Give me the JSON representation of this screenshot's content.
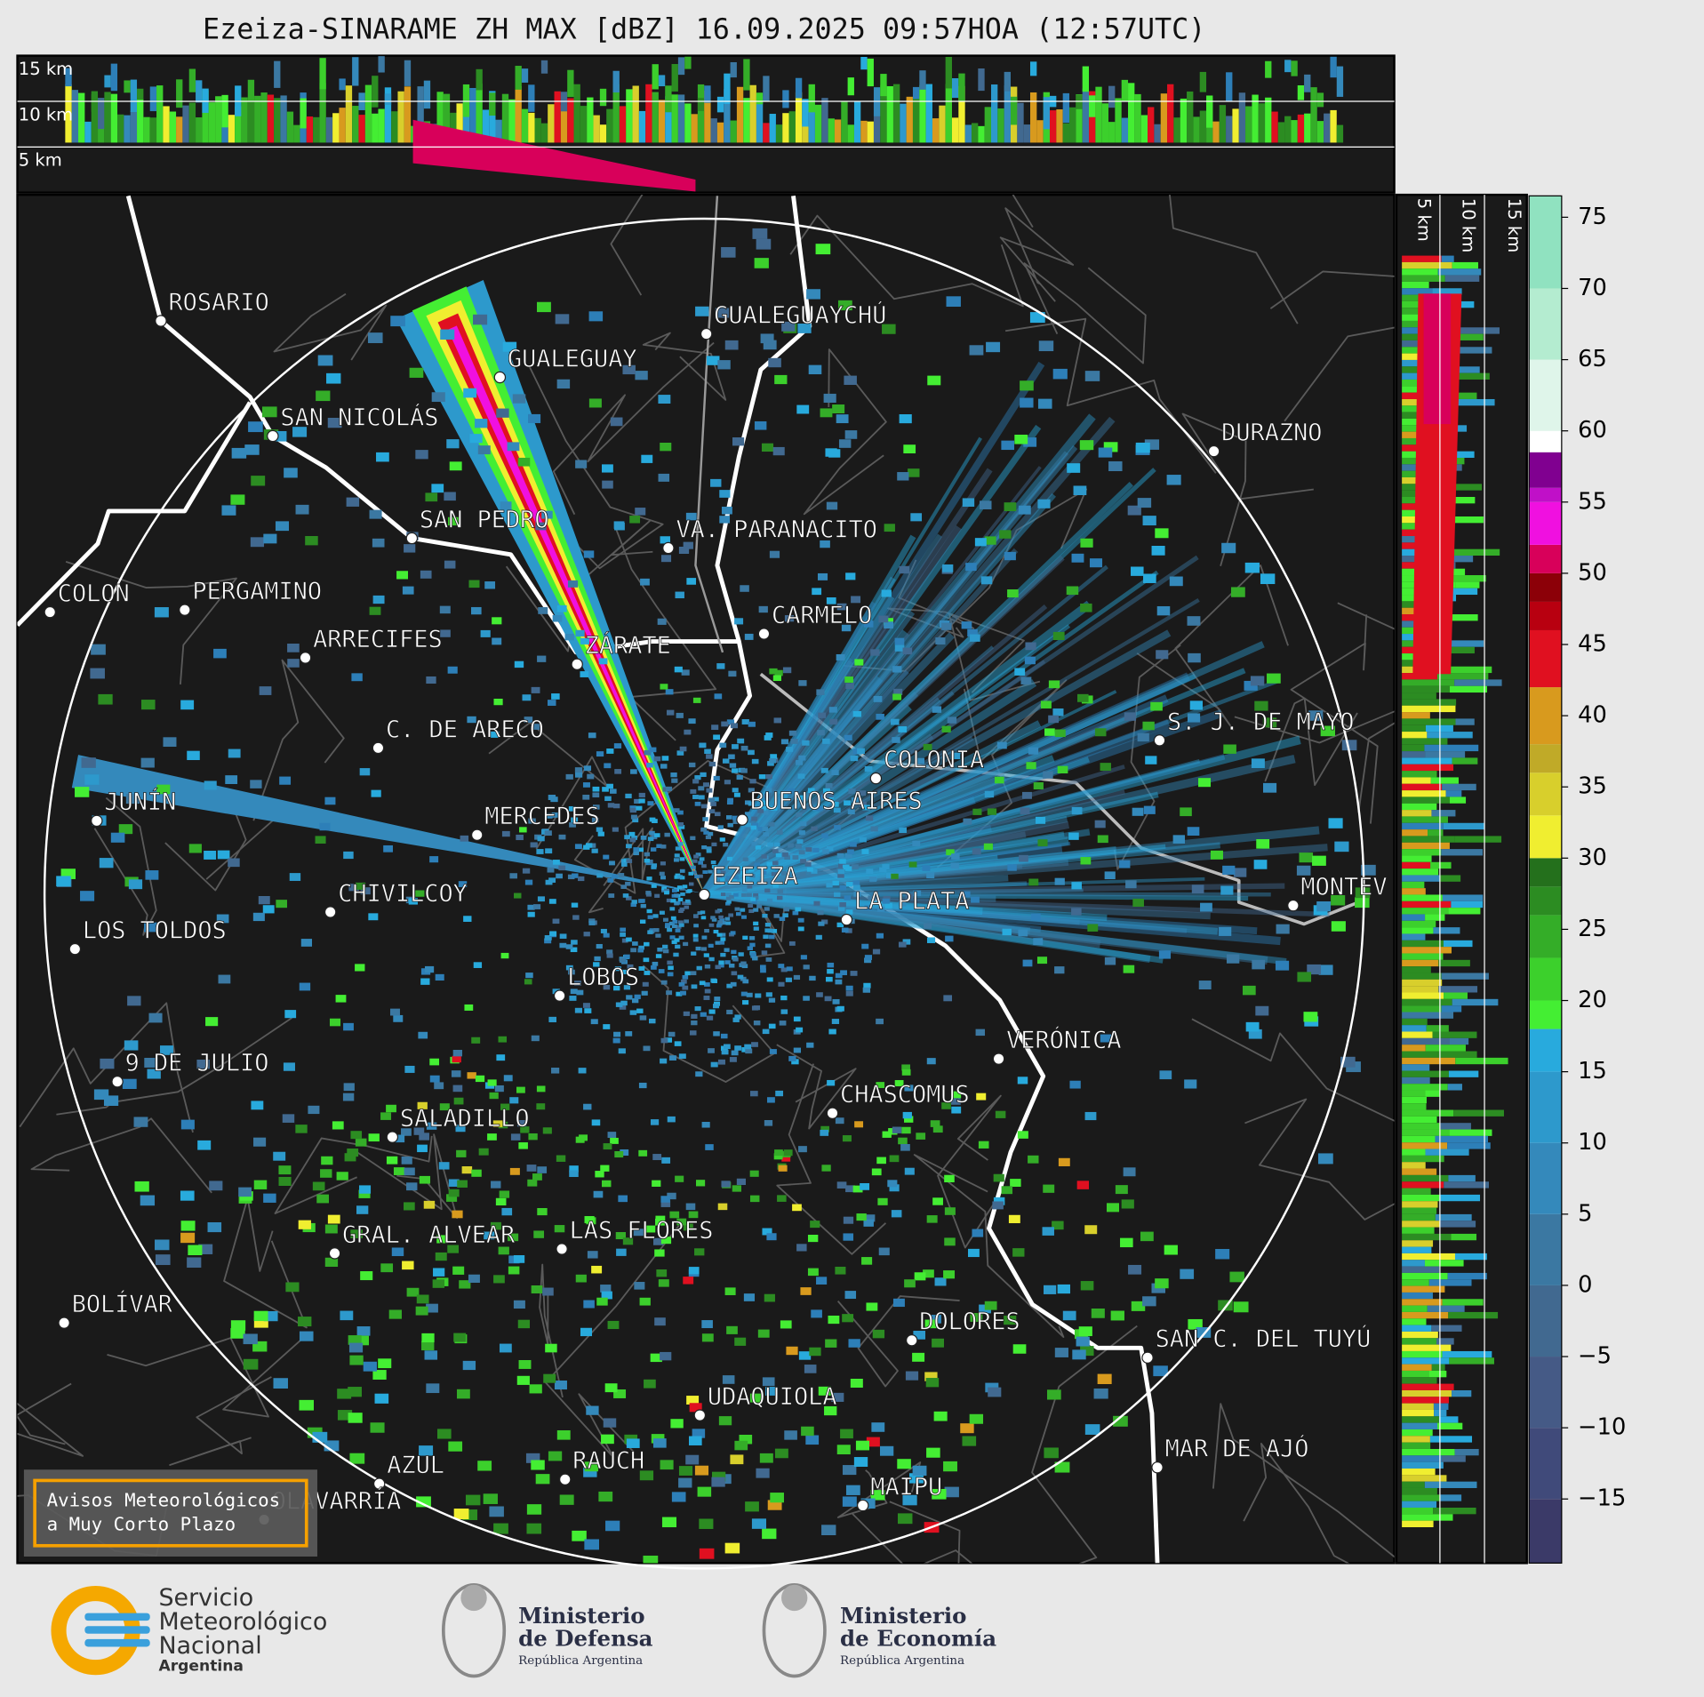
{
  "title": "Ezeiza-SINARAME ZH MAX [dBZ] 16.09.2025 09:57HOA (12:57UTC)",
  "vertical_section_top": {
    "height_labels": [
      "15 km",
      "10 km",
      "5 km"
    ]
  },
  "vertical_section_right": {
    "height_labels": [
      "5 km",
      "10 km",
      "15 km"
    ]
  },
  "map": {
    "places": [
      "ROSARIO",
      "GUALEGUAYCHÚ",
      "GUALEGUAY",
      "SAN NICOLÁS",
      "DURAZNO",
      "SAN PEDRO",
      "VA. PARANACITO",
      "COLON",
      "PERGAMINO",
      "CARMELO",
      "ARRECIFES",
      "ZÁRATE",
      "C. DE ARECO",
      "S. J. DE MAYO",
      "COLONIA",
      "JUNÍN",
      "BUENOS AIRES",
      "MERCEDES",
      "EZEIZA",
      "MONTEV",
      "CHIVILCOY",
      "LA PLATA",
      "LOS TOLDOS",
      "LOBOS",
      "VERÓNICA",
      "9 DE JULIO",
      "CHASCOMUS",
      "SALADILLO",
      "GRAL. ALVEAR",
      "LAS FLORES",
      "BOLÍVAR",
      "DOLORES",
      "SAN C. DEL TUYÚ",
      "UDAQUIOLA",
      "MAR DE AJÓ",
      "AZUL",
      "RAUCH",
      "OLAVARRÍA",
      "MAIPU"
    ],
    "notice": [
      "Avisos Meteorológicos",
      "a Muy Corto Plazo"
    ]
  },
  "colorbar": {
    "range": [
      -19.5,
      76.5
    ],
    "ticks": [
      {
        "value": -15,
        "label": "−15"
      },
      {
        "value": -10,
        "label": "−10"
      },
      {
        "value": -5,
        "label": "−5"
      },
      0,
      5,
      10,
      15,
      20,
      25,
      30,
      35,
      40,
      45,
      50,
      55,
      60,
      65,
      70,
      75
    ],
    "bands": [
      {
        "from": -19.5,
        "color": "#3b3a68"
      },
      {
        "from": -15,
        "color": "#404a7a"
      },
      {
        "from": -10,
        "color": "#455a86"
      },
      {
        "from": -5,
        "color": "#416990"
      },
      {
        "from": 0,
        "color": "#3b78a2"
      },
      {
        "from": 5,
        "color": "#3489bb"
      },
      {
        "from": 10,
        "color": "#2d99cc"
      },
      {
        "from": 15,
        "color": "#28aadd"
      },
      {
        "from": 18,
        "color": "#44ee33"
      },
      {
        "from": 20,
        "color": "#3cd02c"
      },
      {
        "from": 23,
        "color": "#34ad28"
      },
      {
        "from": 26,
        "color": "#2c8c22"
      },
      {
        "from": 28,
        "color": "#24701c"
      },
      {
        "from": 30,
        "color": "#f0ee30"
      },
      {
        "from": 33,
        "color": "#d8cf2c"
      },
      {
        "from": 36,
        "color": "#c0aa28"
      },
      {
        "from": 38,
        "color": "#d89a1e"
      },
      {
        "from": 42,
        "color": "#e01020"
      },
      {
        "from": 46,
        "color": "#b80010"
      },
      {
        "from": 48,
        "color": "#8c0008"
      },
      {
        "from": 50,
        "color": "#d8005a"
      },
      {
        "from": 52,
        "color": "#f010e0"
      },
      {
        "from": 55,
        "color": "#c010c8"
      },
      {
        "from": 56,
        "color": "#800090"
      },
      {
        "from": 58.5,
        "color": "#ffffff"
      },
      {
        "from": 60,
        "color": "#dff5ea"
      },
      {
        "from": 65,
        "color": "#b4ecd0"
      },
      {
        "from": 70,
        "color": "#90e2c0"
      }
    ]
  },
  "footer": {
    "smn": [
      "Servicio",
      "Meteorológico",
      "Nacional",
      "Argentina"
    ],
    "defensa": [
      "Ministerio",
      "de Defensa",
      "República Argentina"
    ],
    "economia": [
      "Ministerio",
      "de Economía",
      "República Argentina"
    ]
  }
}
